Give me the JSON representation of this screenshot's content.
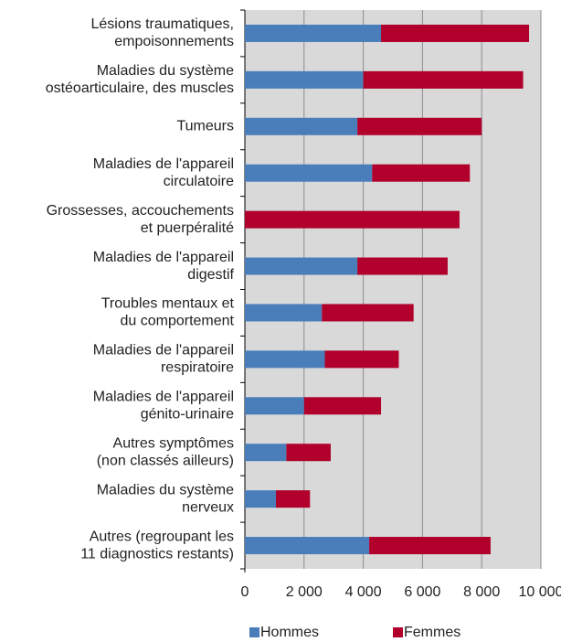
{
  "chart_data": {
    "type": "bar",
    "orientation": "horizontal",
    "stacked": true,
    "categories": [
      [
        "Lésions traumatiques,",
        "empoisonnements"
      ],
      [
        "Maladies du système",
        "ostéoarticulaire, des muscles"
      ],
      [
        "Tumeurs"
      ],
      [
        "Maladies de l'appareil",
        "circulatoire"
      ],
      [
        "Grossesses, accouchements",
        "et puerpéralité"
      ],
      [
        "Maladies de l'appareil",
        "digestif"
      ],
      [
        "Troubles mentaux et",
        "du comportement"
      ],
      [
        "Maladies de l'appareil",
        "respiratoire"
      ],
      [
        "Maladies de l'appareil",
        "génito-urinaire"
      ],
      [
        "Autres symptômes",
        "(non classés ailleurs)"
      ],
      [
        "Maladies du système",
        "nerveux"
      ],
      [
        "Autres (regroupant les",
        "11 diagnostics restants)"
      ]
    ],
    "series": [
      {
        "name": "Hommes",
        "color": "#4a7ebb",
        "values": [
          4600,
          4000,
          3800,
          4300,
          0,
          3800,
          2600,
          2700,
          2000,
          1400,
          1050,
          4200
        ]
      },
      {
        "name": "Femmes",
        "color": "#b0002b",
        "values": [
          5000,
          5400,
          4200,
          3300,
          7250,
          3050,
          3100,
          2500,
          2600,
          1500,
          1150,
          4100
        ]
      }
    ],
    "xlim": [
      0,
      10000
    ],
    "xticks": [
      0,
      {
        "value": 2000,
        "label": "2 000"
      },
      {
        "value": 4000,
        "label": "4 000"
      },
      {
        "value": 6000,
        "label": "6 000"
      },
      {
        "value": 8000,
        "label": "8 000"
      },
      {
        "value": 10000,
        "label": "10 000"
      }
    ],
    "grid": true,
    "legend": "bottom"
  }
}
